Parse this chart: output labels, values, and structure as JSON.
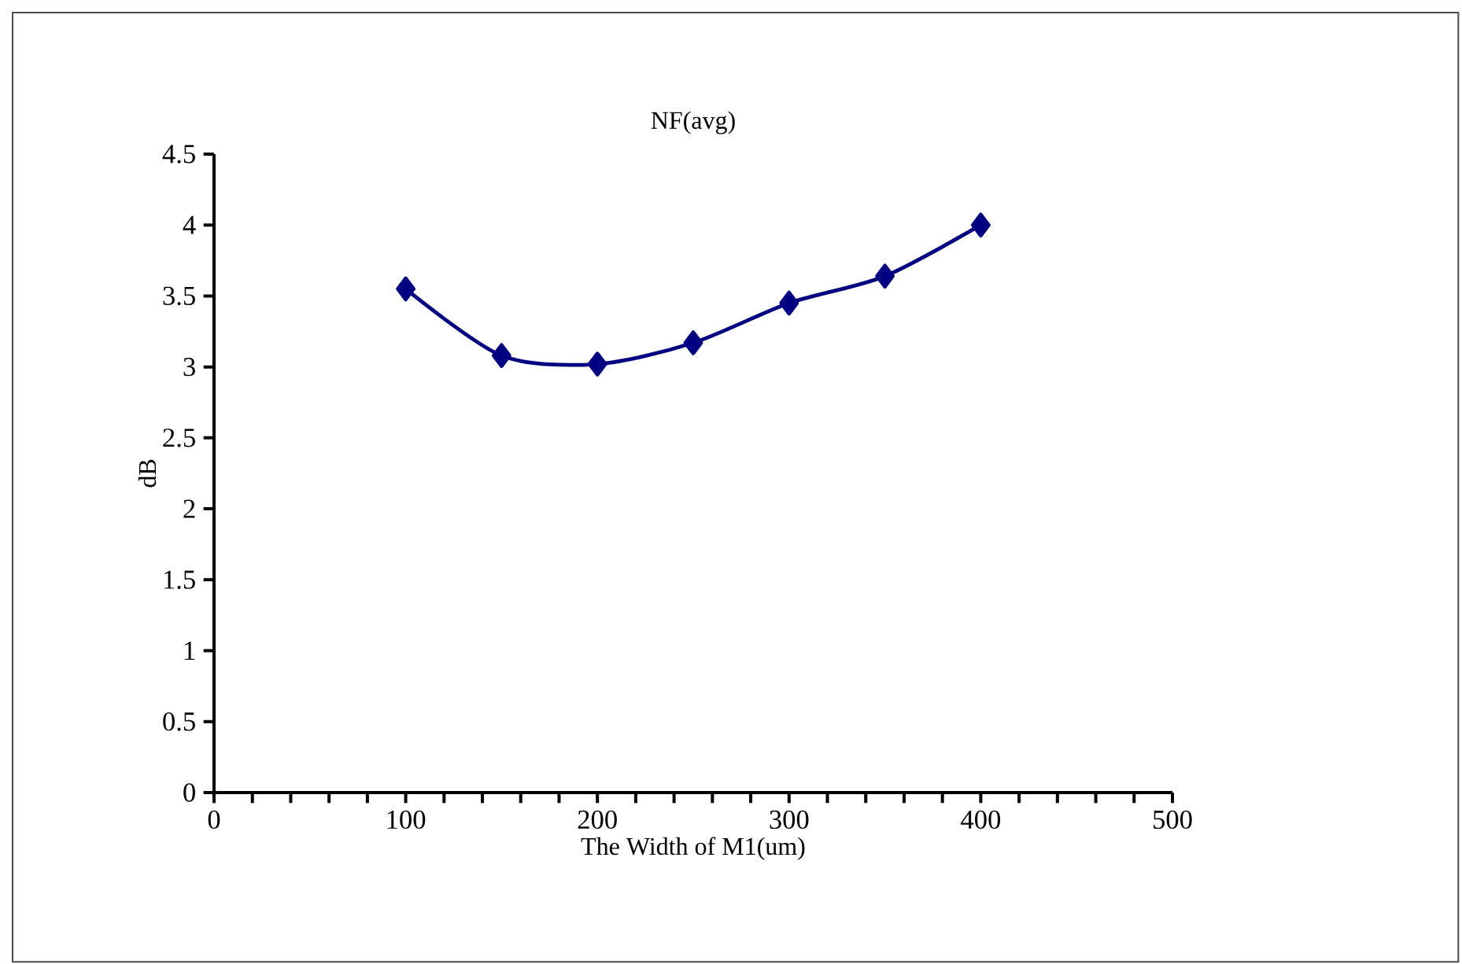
{
  "chart_data": {
    "type": "line",
    "title": "NF(avg)",
    "xlabel": "The Width of M1(um)",
    "ylabel": "dB",
    "x": [
      100,
      150,
      200,
      250,
      300,
      350,
      400
    ],
    "series": [
      {
        "color": "#000080",
        "values": [
          3.55,
          3.08,
          3.02,
          3.17,
          3.45,
          3.64,
          4.0
        ]
      }
    ],
    "xlim": [
      0,
      500
    ],
    "xticks": [
      0,
      {
        "value": 20,
        "label": null
      },
      {
        "value": 40,
        "label": null
      },
      {
        "value": 60,
        "label": null
      },
      {
        "value": 80,
        "label": null
      },
      100,
      {
        "value": 120,
        "label": null
      },
      {
        "value": 140,
        "label": null
      },
      {
        "value": 160,
        "label": null
      },
      {
        "value": 180,
        "label": null
      },
      200,
      {
        "value": 220,
        "label": null
      },
      {
        "value": 240,
        "label": null
      },
      {
        "value": 260,
        "label": null
      },
      {
        "value": 280,
        "label": null
      },
      300,
      {
        "value": 320,
        "label": null
      },
      {
        "value": 340,
        "label": null
      },
      {
        "value": 360,
        "label": null
      },
      {
        "value": 380,
        "label": null
      },
      400,
      {
        "value": 420,
        "label": null
      },
      {
        "value": 440,
        "label": null
      },
      {
        "value": 460,
        "label": null
      },
      {
        "value": 480,
        "label": null
      },
      500
    ],
    "ylim": [
      0,
      4.5
    ],
    "yticks": [
      0,
      0.5,
      1,
      1.5,
      2,
      2.5,
      3,
      3.5,
      4,
      4.5
    ],
    "grid": false,
    "marker": "diamond",
    "line_style": "solid"
  }
}
